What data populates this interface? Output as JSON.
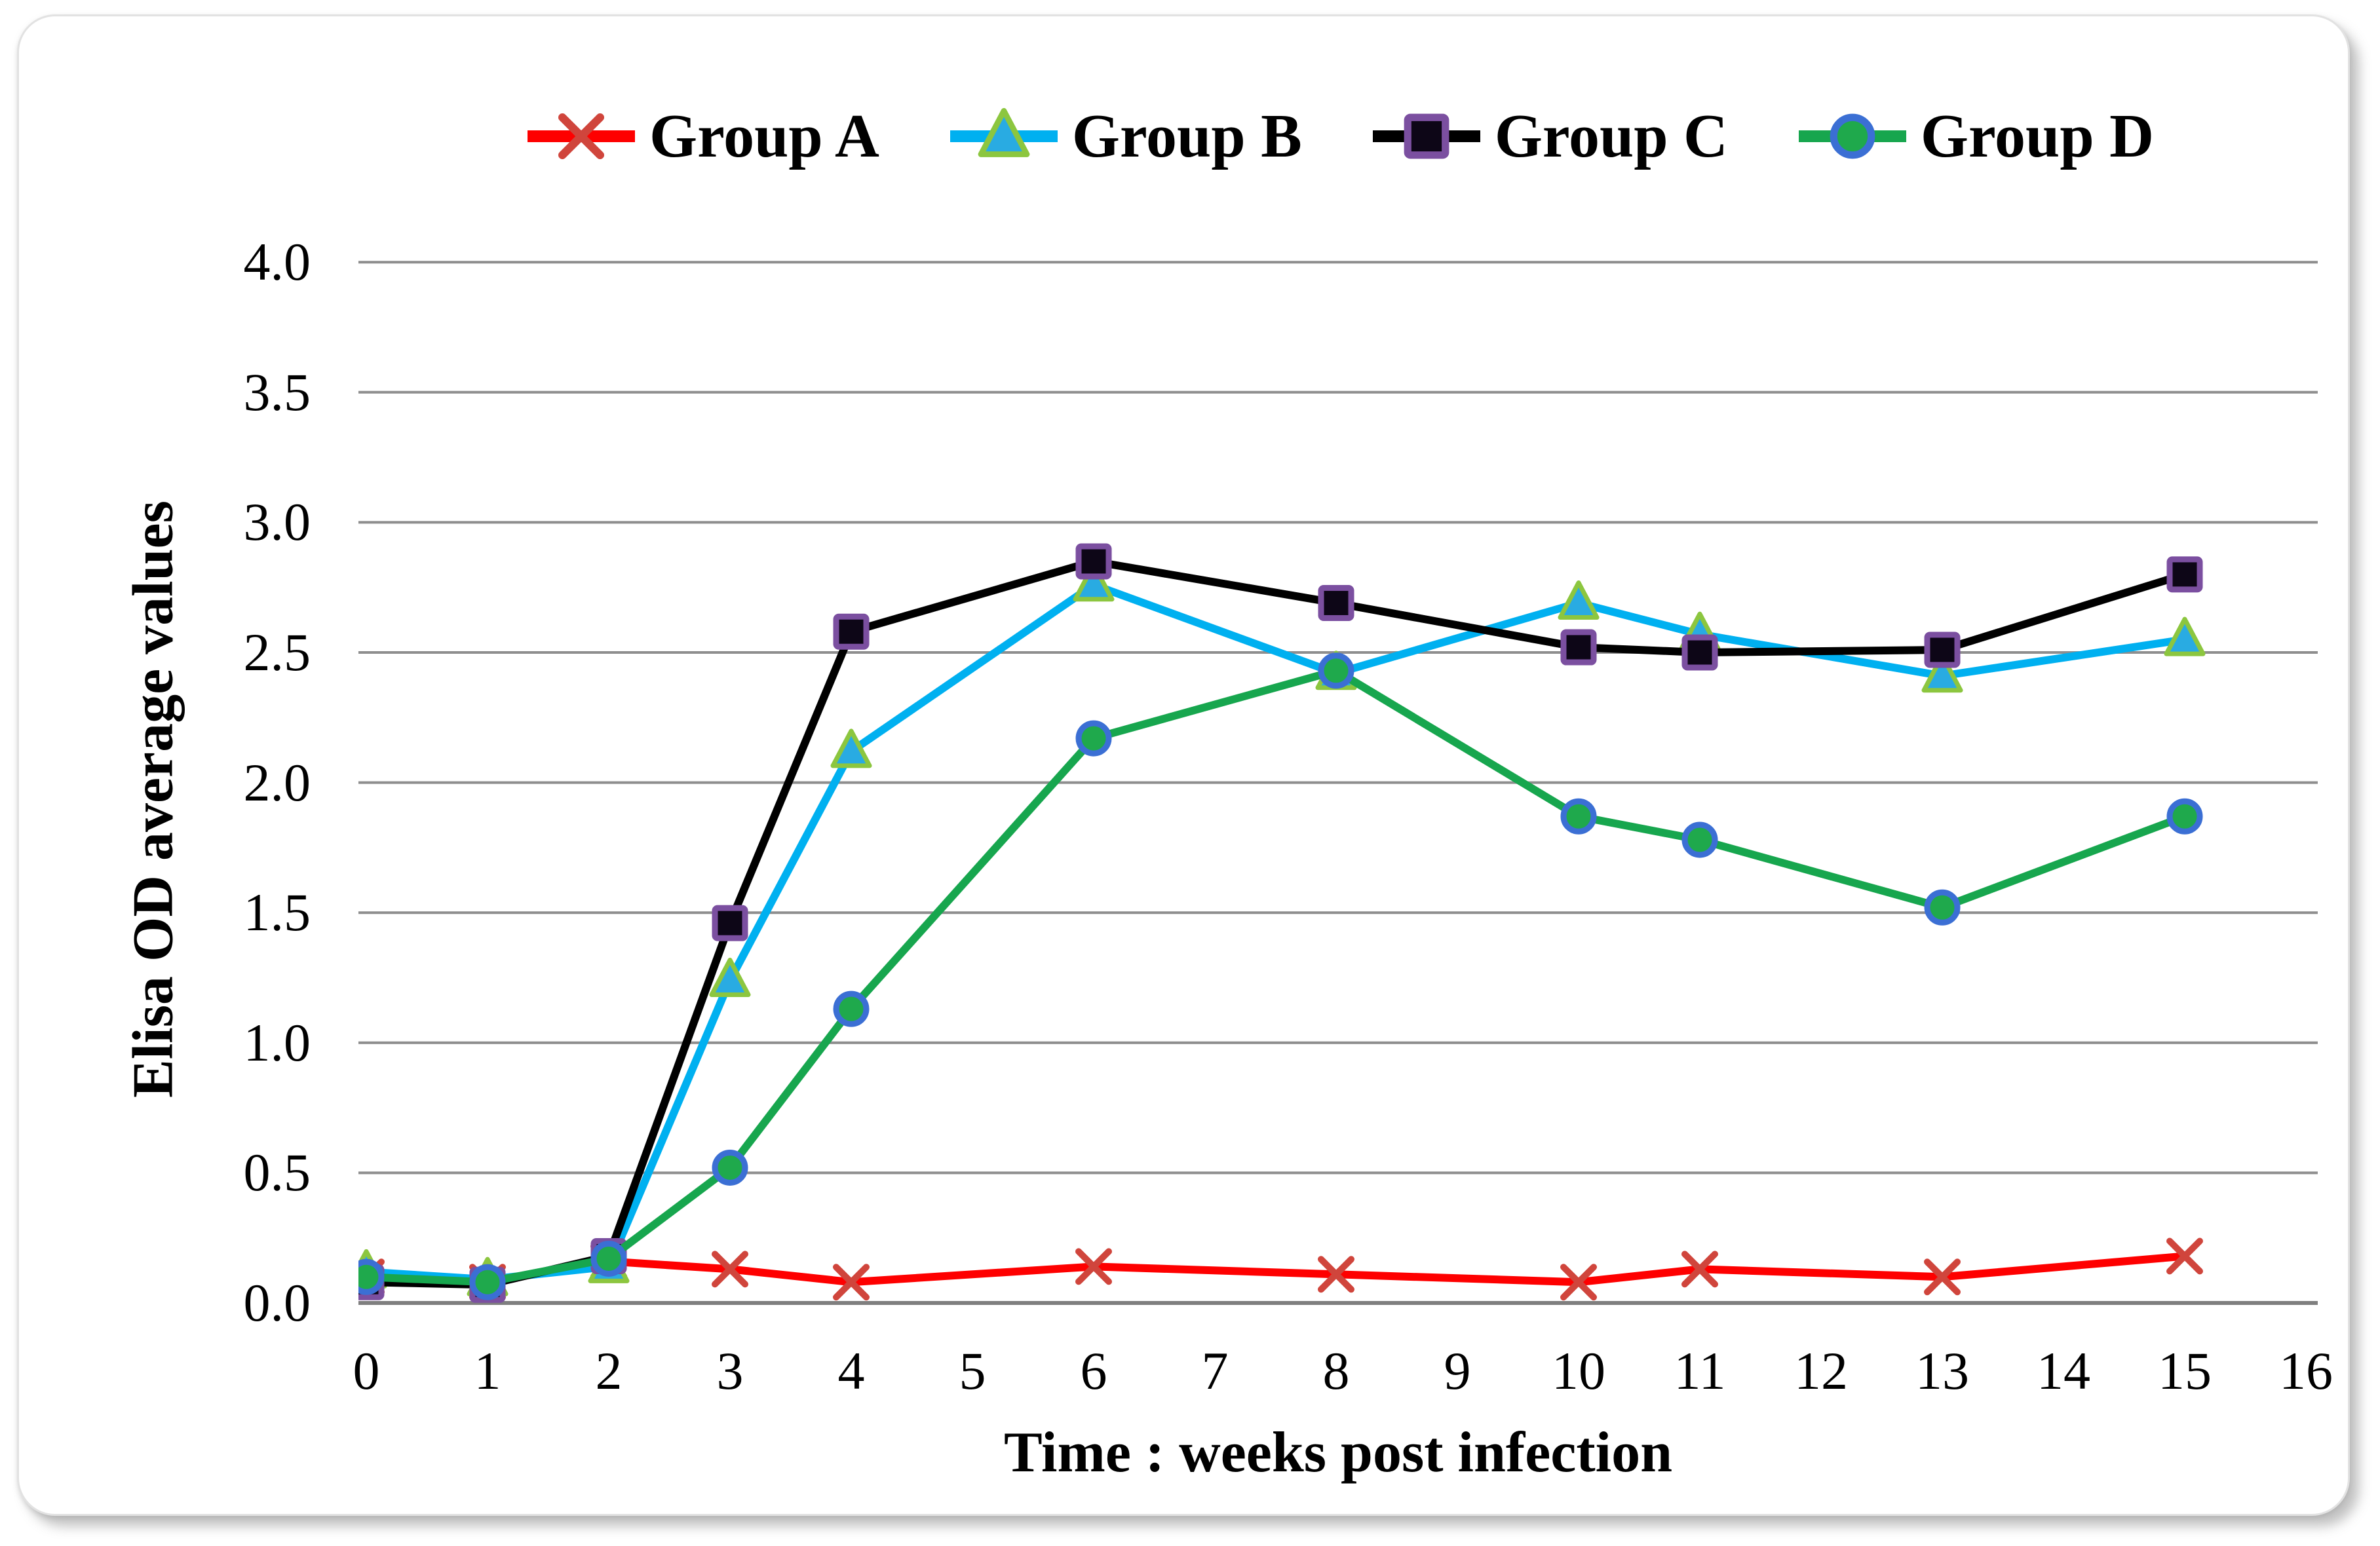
{
  "chart_data": {
    "type": "line",
    "title": "",
    "xlabel": "Time : weeks post infection",
    "ylabel": "Elisa OD average values",
    "x_tick_labels": [
      "0",
      "1",
      "2",
      "3",
      "4",
      "5",
      "6",
      "7",
      "8",
      "9",
      "10",
      "11",
      "12",
      "13",
      "14",
      "15",
      "16"
    ],
    "y_tick_labels": [
      "0.0",
      "0.5",
      "1.0",
      "1.5",
      "2.0",
      "2.5",
      "3.0",
      "3.5",
      "4.0"
    ],
    "xlim": [
      0,
      16
    ],
    "ylim": [
      0.0,
      4.0
    ],
    "grid": "horizontal-only",
    "grid_color": "#8e8e8e",
    "axis_line_color": "#7f7f7f",
    "legend_position": "top-center",
    "x": [
      0,
      1,
      2,
      3,
      4,
      6,
      8,
      10,
      11,
      13,
      15
    ],
    "series": [
      {
        "name": "Group A",
        "marker": "x-cross",
        "line_color": "#fe0000",
        "marker_fill": "#d0453c",
        "marker_edge": "#d0453c",
        "values": [
          0.1,
          0.08,
          0.16,
          0.13,
          0.08,
          0.14,
          0.11,
          0.08,
          0.13,
          0.1,
          0.18
        ]
      },
      {
        "name": "Group B",
        "marker": "triangle-up",
        "line_color": "#00b0f0",
        "marker_fill": "#29abe2",
        "marker_edge": "#8cc63f",
        "values": [
          0.12,
          0.09,
          0.14,
          1.24,
          2.12,
          2.76,
          2.42,
          2.69,
          2.57,
          2.41,
          2.55
        ]
      },
      {
        "name": "Group C",
        "marker": "square",
        "line_color": "#000000",
        "marker_fill": "#0d0617",
        "marker_edge": "#7b4fa0",
        "values": [
          0.08,
          0.07,
          0.18,
          1.46,
          2.58,
          2.85,
          2.69,
          2.52,
          2.5,
          2.51,
          2.8
        ]
      },
      {
        "name": "Group D",
        "marker": "circle",
        "line_color": "#17a64e",
        "marker_fill": "#1fa94c",
        "marker_edge": "#3b6fd4",
        "values": [
          0.1,
          0.08,
          0.17,
          0.52,
          1.13,
          2.17,
          2.43,
          1.87,
          1.78,
          1.52,
          1.87
        ]
      }
    ]
  }
}
